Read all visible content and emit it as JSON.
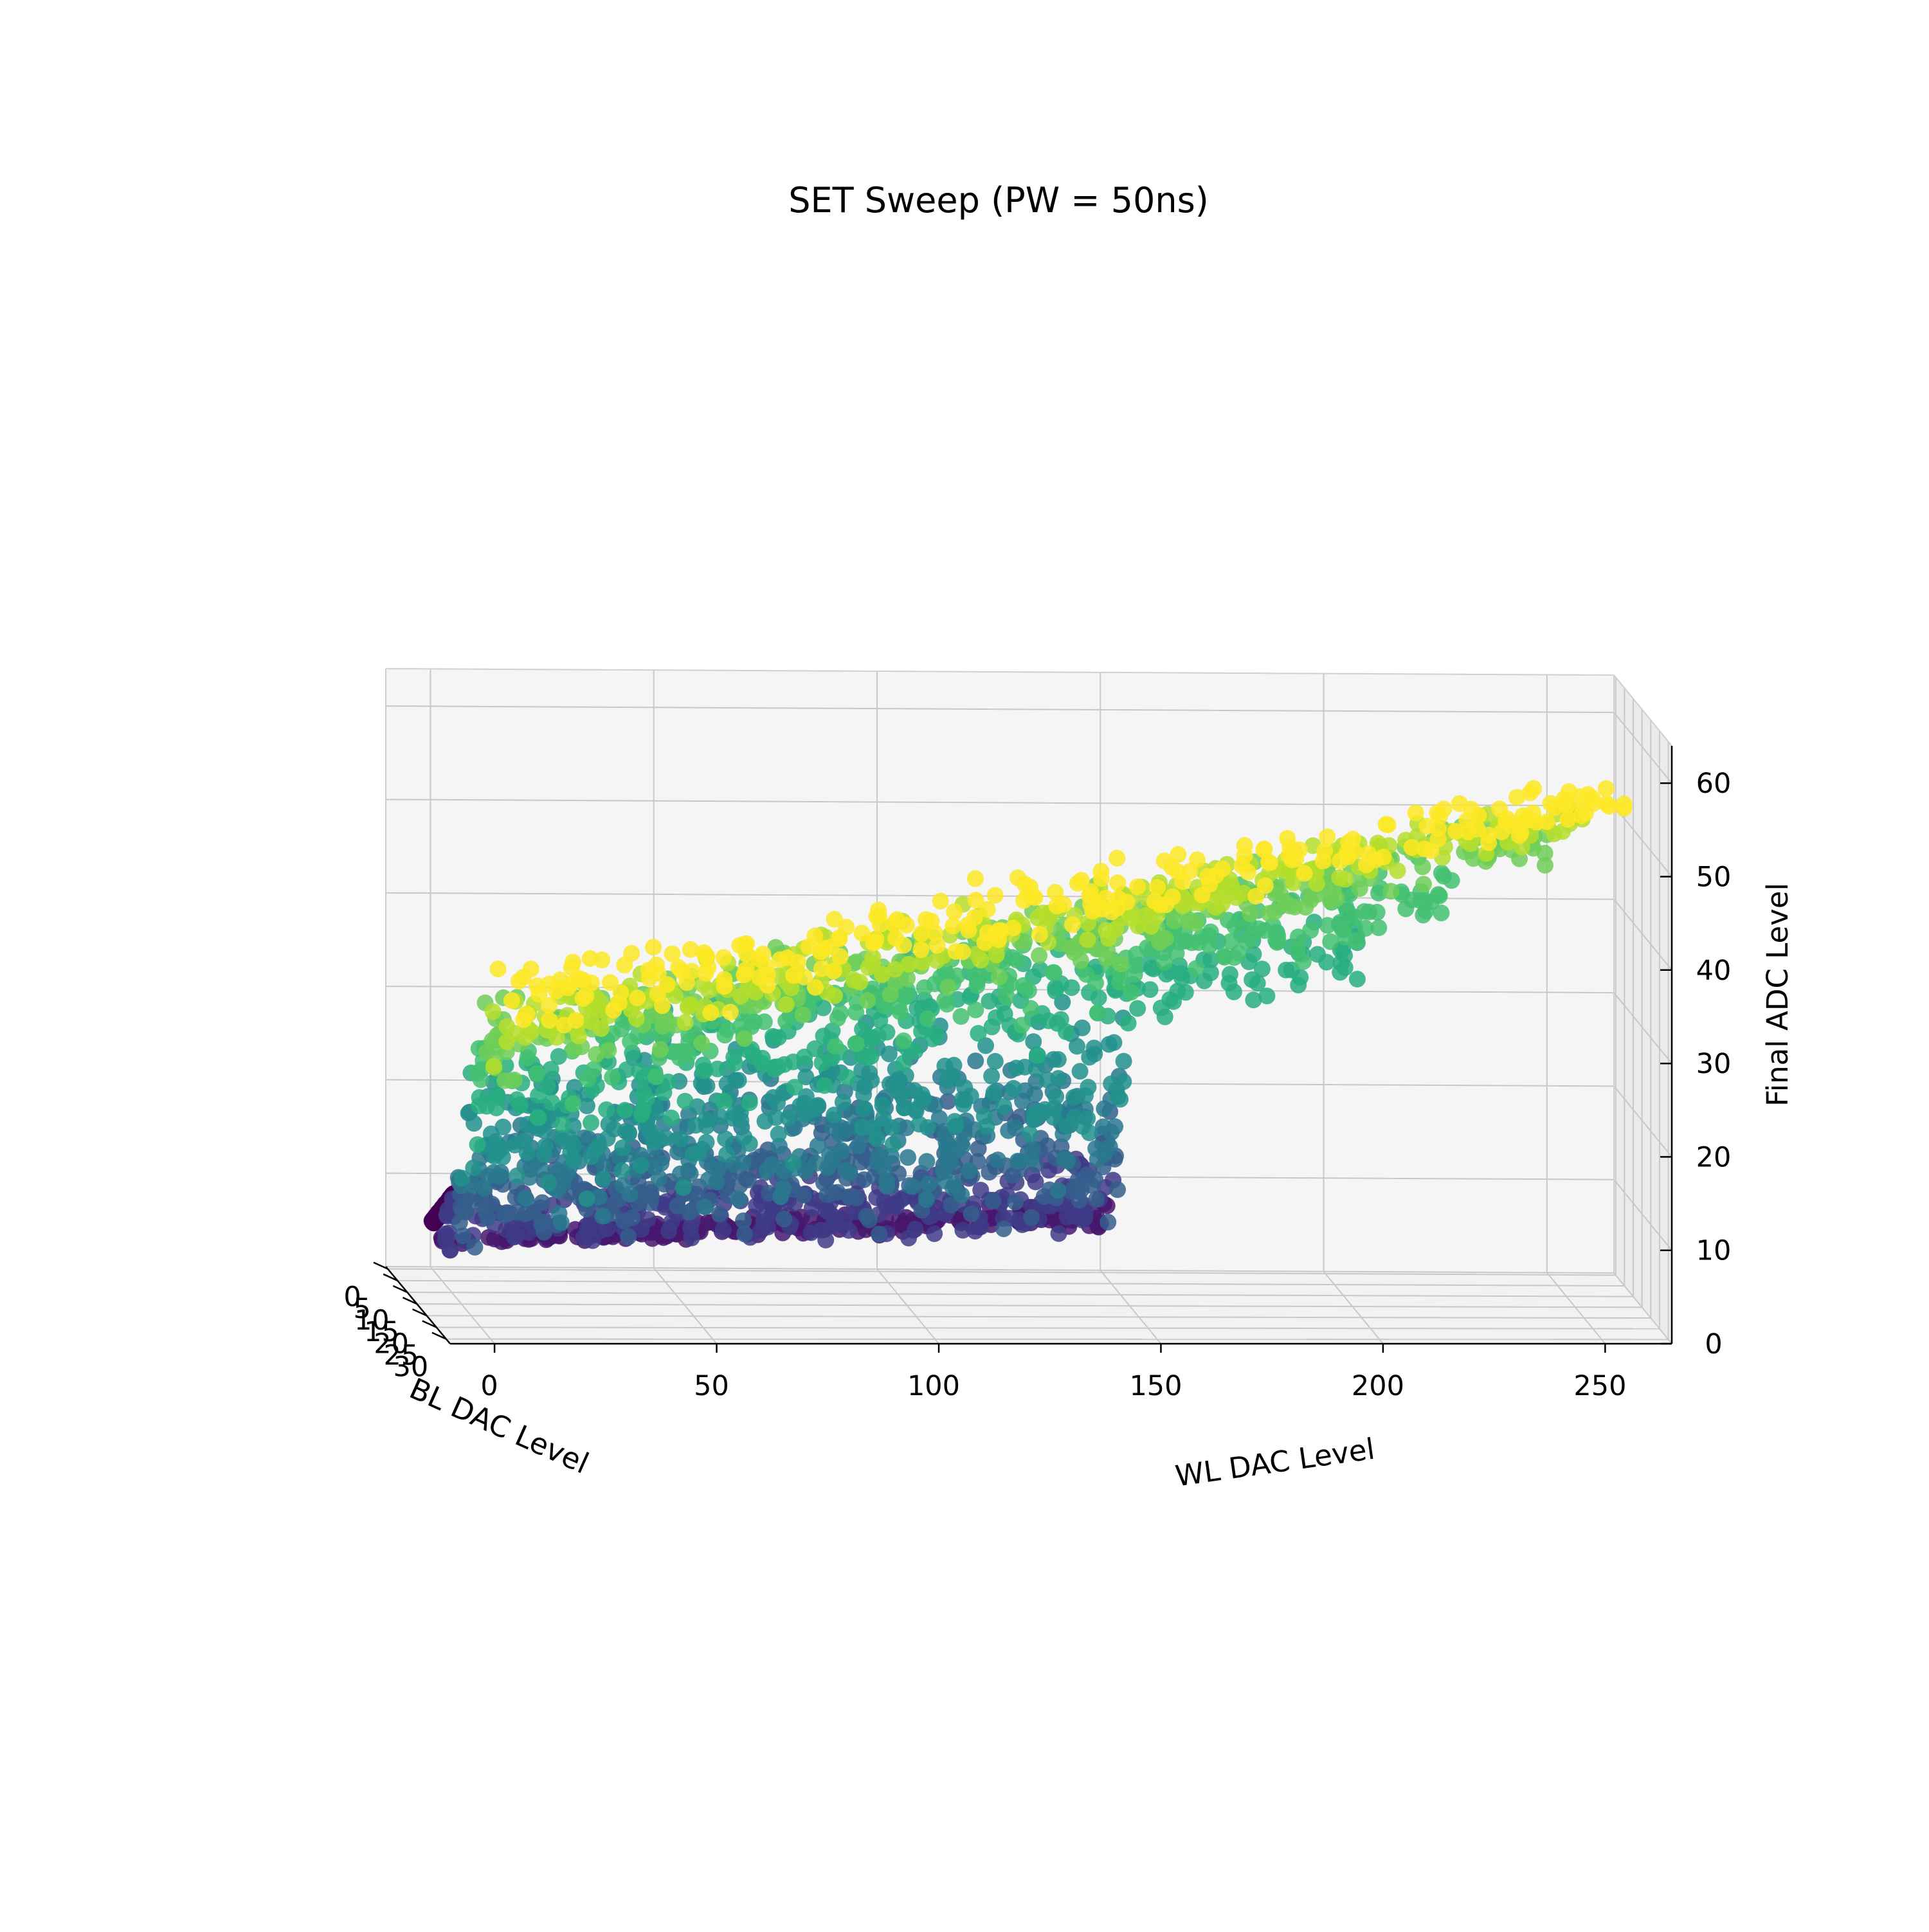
{
  "chart_data": {
    "type": "scatter",
    "projection": "3d",
    "title": "SET Sweep (PW = 50ns)",
    "xlabel": "WL DAC Level",
    "ylabel": "BL DAC Level",
    "zlabel": "Final ADC Level",
    "xlim": [
      -10,
      265
    ],
    "ylim": [
      -1,
      32
    ],
    "zlim": [
      0,
      64
    ],
    "x_ticks": [
      "0",
      "50",
      "100",
      "150",
      "200",
      "250"
    ],
    "y_ticks": [
      "0",
      "5",
      "10",
      "15",
      "20",
      "25",
      "30"
    ],
    "z_ticks": [
      "0",
      "10",
      "20",
      "30",
      "40",
      "50",
      "60"
    ],
    "grid": true,
    "colormap": "viridis",
    "color_variable": "BL DAC Level",
    "series": [
      {
        "bl_level": 0,
        "x_range": [
          0,
          5
        ],
        "z_range": [
          5,
          8
        ],
        "z_spread": [
          0,
          0
        ],
        "color": "#440154"
      },
      {
        "bl_level": 3,
        "x_range": [
          0,
          150
        ],
        "z_range": [
          4,
          7
        ],
        "z_spread": [
          1,
          2
        ],
        "color": "#46186d"
      },
      {
        "bl_level": 6,
        "x_range": [
          0,
          150
        ],
        "z_range": [
          7,
          10
        ],
        "z_spread": [
          4,
          6
        ],
        "color": "#3f3b87"
      },
      {
        "bl_level": 9,
        "x_range": [
          0,
          150
        ],
        "z_range": [
          10,
          14
        ],
        "z_spread": [
          6,
          10
        ],
        "color": "#355e8c"
      },
      {
        "bl_level": 12,
        "x_range": [
          0,
          150
        ],
        "z_range": [
          14,
          20
        ],
        "z_spread": [
          7,
          10
        ],
        "color": "#2a788e"
      },
      {
        "bl_level": 15,
        "x_range": [
          0,
          150
        ],
        "z_range": [
          18,
          26
        ],
        "z_spread": [
          8,
          10
        ],
        "color": "#22918c"
      },
      {
        "bl_level": 18,
        "x_range": [
          0,
          200
        ],
        "z_range": [
          22,
          40
        ],
        "z_spread": [
          8,
          8
        ],
        "color": "#28ae80"
      },
      {
        "bl_level": 21,
        "x_range": [
          0,
          220
        ],
        "z_range": [
          27,
          46
        ],
        "z_spread": [
          7,
          6
        ],
        "color": "#43bf71"
      },
      {
        "bl_level": 24,
        "x_range": [
          0,
          240
        ],
        "z_range": [
          30,
          52
        ],
        "z_spread": [
          6,
          4
        ],
        "color": "#6ece58"
      },
      {
        "bl_level": 27,
        "x_range": [
          0,
          250
        ],
        "z_range": [
          32,
          56
        ],
        "z_spread": [
          5,
          3
        ],
        "color": "#b5de2b"
      },
      {
        "bl_level": 30,
        "x_range": [
          0,
          255
        ],
        "z_range": [
          35,
          58
        ],
        "z_spread": [
          6,
          3
        ],
        "color": "#fde725"
      }
    ]
  }
}
